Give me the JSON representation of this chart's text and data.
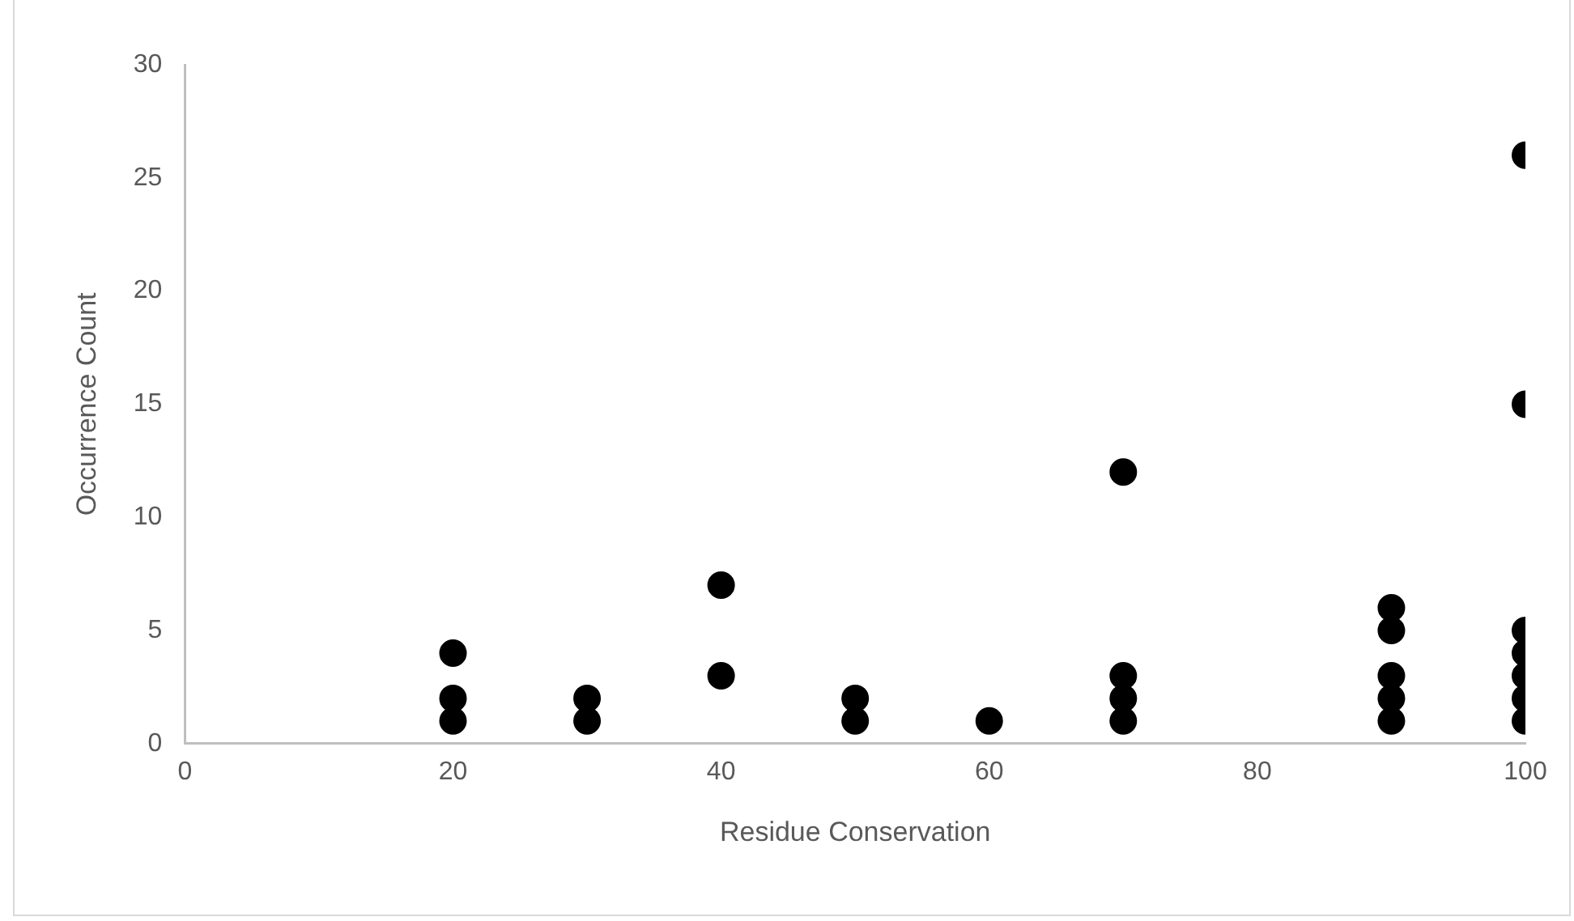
{
  "chart_data": {
    "type": "scatter",
    "xlabel": "Residue Conservation",
    "ylabel": "Occurrence Count",
    "x": [
      20,
      20,
      20,
      30,
      30,
      40,
      40,
      50,
      50,
      60,
      70,
      70,
      70,
      70,
      90,
      90,
      90,
      90,
      90,
      100,
      100,
      100,
      100,
      100,
      100,
      100
    ],
    "values": [
      4,
      2,
      1,
      2,
      1,
      7,
      3,
      2,
      1,
      1,
      12,
      3,
      2,
      1,
      6,
      5,
      3,
      2,
      1,
      26,
      15,
      5,
      4,
      3,
      2,
      1
    ],
    "color": "#000000",
    "marker": "circle",
    "grid": false,
    "legend": false,
    "xlim": [
      0,
      100
    ],
    "xticks": [
      0,
      20,
      40,
      60,
      80,
      100
    ],
    "ylim": [
      0,
      30
    ],
    "yticks": [
      0,
      5,
      10,
      15,
      20,
      25,
      30
    ]
  }
}
